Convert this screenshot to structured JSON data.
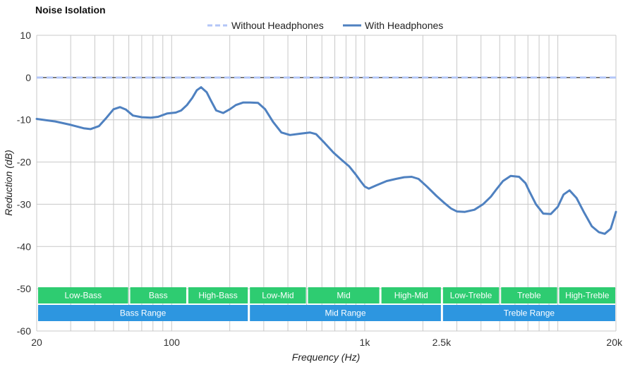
{
  "chart_data": {
    "type": "line",
    "title": "Noise Isolation",
    "xlabel": "Frequency (Hz)",
    "ylabel": "Reduction (dB)",
    "x_scale": "log",
    "xlim": [
      20,
      20000
    ],
    "ylim": [
      -60,
      10
    ],
    "grid": true,
    "legend": "top-center",
    "x_ticks": [
      {
        "value": 20,
        "label": "20"
      },
      {
        "value": 100,
        "label": "100"
      },
      {
        "value": 1000,
        "label": "1k"
      },
      {
        "value": 2500,
        "label": "2.5k"
      },
      {
        "value": 20000,
        "label": "20k"
      }
    ],
    "y_ticks": [
      10,
      0,
      -10,
      -20,
      -30,
      -40,
      -50,
      -60
    ],
    "series": [
      {
        "name": "Without Headphones",
        "color": "#b3c6f7",
        "style": "dashed",
        "x": [
          20,
          20000
        ],
        "y": [
          0,
          0
        ]
      },
      {
        "name": "With Headphones",
        "color": "#4f81c0",
        "style": "solid",
        "x": [
          20,
          25,
          30,
          35,
          38,
          42,
          46,
          50,
          54,
          58,
          63,
          70,
          78,
          85,
          95,
          105,
          112,
          120,
          128,
          135,
          142,
          152,
          160,
          170,
          185,
          200,
          215,
          235,
          255,
          280,
          305,
          335,
          370,
          410,
          460,
          520,
          560,
          620,
          690,
          760,
          830,
          900,
          950,
          1000,
          1050,
          1150,
          1300,
          1450,
          1600,
          1750,
          1900,
          2100,
          2350,
          2600,
          2800,
          3000,
          3300,
          3700,
          4100,
          4500,
          4800,
          5200,
          5700,
          6300,
          6800,
          7100,
          7700,
          8400,
          9200,
          10000,
          10700,
          11500,
          12500,
          13700,
          15000,
          16300,
          17500,
          18800,
          20000
        ],
        "y": [
          -9.8,
          -10.4,
          -11.2,
          -12.0,
          -12.2,
          -11.5,
          -9.5,
          -7.5,
          -7.0,
          -7.6,
          -9.0,
          -9.4,
          -9.5,
          -9.3,
          -8.5,
          -8.3,
          -7.8,
          -6.5,
          -4.8,
          -3.0,
          -2.3,
          -3.5,
          -5.5,
          -7.8,
          -8.4,
          -7.5,
          -6.5,
          -5.9,
          -5.9,
          -6.0,
          -7.5,
          -10.5,
          -13.0,
          -13.6,
          -13.3,
          -13.0,
          -13.4,
          -15.5,
          -17.8,
          -19.5,
          -21.0,
          -23.0,
          -24.5,
          -25.8,
          -26.3,
          -25.5,
          -24.5,
          -24.0,
          -23.6,
          -23.5,
          -24.0,
          -25.8,
          -28.0,
          -29.8,
          -31.0,
          -31.7,
          -31.8,
          -31.3,
          -30.0,
          -28.2,
          -26.5,
          -24.5,
          -23.3,
          -23.5,
          -25.0,
          -26.8,
          -30.0,
          -32.2,
          -32.3,
          -30.6,
          -27.7,
          -26.7,
          -28.5,
          -32.0,
          -35.2,
          -36.6,
          -37.0,
          -35.8,
          -31.8
        ]
      }
    ],
    "bands": [
      {
        "label": "Low-Bass",
        "from": 20,
        "to": 60,
        "color": "#2ecc71"
      },
      {
        "label": "Bass",
        "from": 60,
        "to": 120,
        "color": "#2ecc71"
      },
      {
        "label": "High-Bass",
        "from": 120,
        "to": 250,
        "color": "#2ecc71"
      },
      {
        "label": "Low-Mid",
        "from": 250,
        "to": 500,
        "color": "#2ecc71"
      },
      {
        "label": "Mid",
        "from": 500,
        "to": 1200,
        "color": "#2ecc71"
      },
      {
        "label": "High-Mid",
        "from": 1200,
        "to": 2500,
        "color": "#2ecc71"
      },
      {
        "label": "Low-Treble",
        "from": 2500,
        "to": 5000,
        "color": "#2ecc71"
      },
      {
        "label": "Treble",
        "from": 5000,
        "to": 10000,
        "color": "#2ecc71"
      },
      {
        "label": "High-Treble",
        "from": 10000,
        "to": 20000,
        "color": "#2ecc71"
      }
    ],
    "ranges": [
      {
        "label": "Bass Range",
        "from": 20,
        "to": 250,
        "color": "#2d96e0"
      },
      {
        "label": "Mid Range",
        "from": 250,
        "to": 2500,
        "color": "#2d96e0"
      },
      {
        "label": "Treble Range",
        "from": 2500,
        "to": 20000,
        "color": "#2d96e0"
      }
    ]
  }
}
